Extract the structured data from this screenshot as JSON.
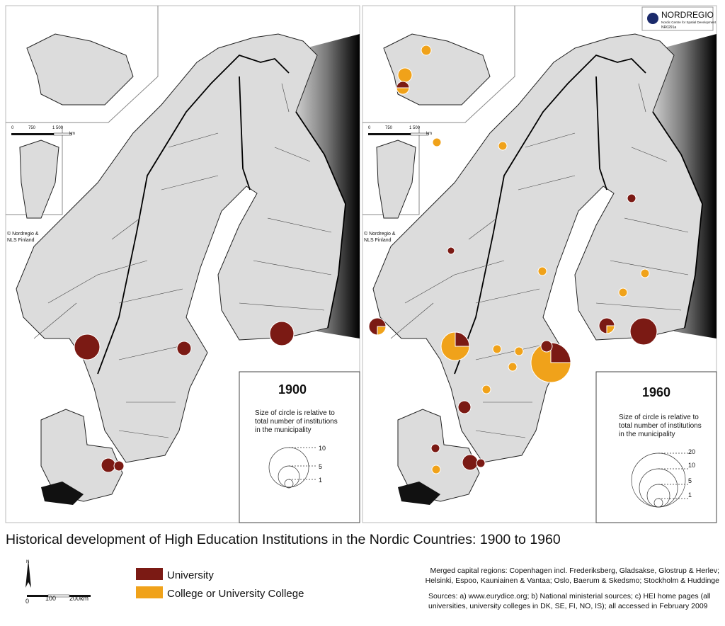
{
  "title": "Historical development of High Education Institutions in the Nordic Countries: 1900 to 1960",
  "maps": [
    {
      "year": "1900",
      "note": [
        "Size of circle is relative to",
        "total number of institutions",
        "in the municipality"
      ],
      "scale": [
        "10",
        "5",
        "1"
      ]
    },
    {
      "year": "1960",
      "note": [
        "Size of circle is relative to",
        "total number of institutions",
        "in the municipality"
      ],
      "scale": [
        "20",
        "10",
        "5",
        "1"
      ]
    }
  ],
  "inset": {
    "scale": [
      "0",
      "750",
      "1 500",
      "km"
    ],
    "credit": [
      "© Nordregio &",
      "NLS Finland"
    ]
  },
  "logo": {
    "name": "NORDREGIO",
    "tagline": "Nordic Centre for Spatial Development",
    "code": "NR0291a"
  },
  "legend": {
    "items": [
      {
        "label": "University",
        "color": "#7b1a14"
      },
      {
        "label": "College or University College",
        "color": "#f0a21a"
      }
    ]
  },
  "north_arrow": {
    "label": "N",
    "scale": [
      "0",
      "100",
      "200km"
    ]
  },
  "notes": {
    "merged": [
      "Merged capital regions: Copenhagen incl. Frederiksberg, Gladsakse, Glostrup & Herlev;",
      "Helsinki, Espoo, Kauniainen & Vantaa; Oslo, Baerum & Skedsmo; Stockholm & Huddinge"
    ],
    "sources": [
      "Sources: a) www.eurydice.org; b) National ministerial sources; c) HEI home pages (all",
      "universities, university colleges in DK, SE, FI, NO, IS); all accessed in February 2009"
    ]
  }
}
